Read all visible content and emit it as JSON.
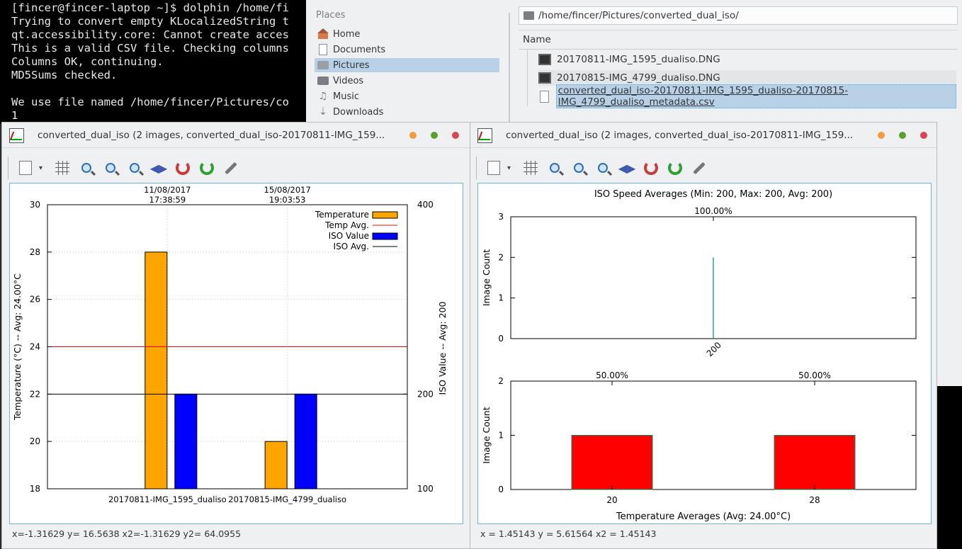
{
  "terminal": {
    "lines": [
      "[fincer@fincer-laptop ~]$ dolphin /home/fi",
      "Trying to convert empty KLocalizedString t",
      "qt.accessibility.core: Cannot create acces",
      "This is a valid CSV file. Checking columns",
      "Columns OK, continuing.",
      "MD5Sums checked.",
      "",
      "We use file named /home/fincer/Pictures/co",
      "1"
    ]
  },
  "dolphin": {
    "places_title": "Places",
    "places": [
      {
        "label": "Home",
        "icon": "home-icon"
      },
      {
        "label": "Documents",
        "icon": "document-icon"
      },
      {
        "label": "Pictures",
        "icon": "pictures-icon"
      },
      {
        "label": "Videos",
        "icon": "videos-icon"
      },
      {
        "label": "Music",
        "icon": "music-icon"
      },
      {
        "label": "Downloads",
        "icon": "downloads-icon"
      }
    ],
    "path": "/home/fincer/Pictures/converted_dual_iso/",
    "column_name": "Name",
    "files": [
      "20170811-IMG_1595_dualiso.DNG",
      "20170815-IMG_4799_dualiso.DNG",
      "converted_dual_iso-20170811-IMG_1595_dualiso-20170815-IMG_4799_dualiso_metadata.csv"
    ]
  },
  "left_window": {
    "title": "converted_dual_iso (2 images, converted_dual_iso-20170811-IMG_159...",
    "status": "x=-1.31629 y= 16.5638 x2=-1.31629 y2= 64.0955"
  },
  "right_window": {
    "title": "converted_dual_iso (2 images, converted_dual_iso-20170811-IMG_159...",
    "status": "x = 1.45143 y = 5.61564 x2 = 1.45143"
  },
  "chart_data": [
    {
      "type": "bar",
      "categories": [
        "20170811-IMG_1595_dualiso",
        "20170815-IMG_4799_dualiso"
      ],
      "top_labels": [
        [
          "11/08/2017",
          "17:38:59"
        ],
        [
          "15/08/2017",
          "19:03:53"
        ]
      ],
      "series": [
        {
          "name": "Temperature",
          "axis": "left",
          "values": [
            28,
            20
          ],
          "color": "#ffa500"
        },
        {
          "name": "ISO Value",
          "axis": "right",
          "values": [
            200,
            200
          ],
          "color": "#0000ff"
        }
      ],
      "lines": [
        {
          "name": "Temp Avg.",
          "axis": "left",
          "value": 24,
          "color": "#ff0000"
        },
        {
          "name": "ISO Avg.",
          "axis": "right",
          "value": 200,
          "color": "#000000"
        }
      ],
      "ylabel": "Temperature (°C) -- Avg: 24.00°C",
      "y2label": "ISO Value -- Avg: 200",
      "ylim": [
        18,
        30
      ],
      "yticks": [
        18,
        20,
        22,
        24,
        26,
        28,
        30
      ],
      "y2lim": [
        100,
        400
      ],
      "y2ticks": [
        100,
        200,
        400
      ],
      "legend": "top-right",
      "grid": true
    },
    {
      "type": "bar",
      "title": "ISO Speed Averages (Min: 200, Max: 200, Avg: 200)",
      "categories": [
        "200"
      ],
      "values": [
        2
      ],
      "percent_labels": [
        "100.00%"
      ],
      "ylabel": "Image Count",
      "ylim": [
        0,
        3
      ],
      "yticks": [
        0,
        1,
        2,
        3
      ],
      "color": "#008b6b"
    },
    {
      "type": "bar",
      "categories": [
        "20",
        "28"
      ],
      "values": [
        1,
        1
      ],
      "percent_labels": [
        "50.00%",
        "50.00%"
      ],
      "xlabel": "Temperature Averages (Avg: 24.00°C)",
      "ylabel": "Image Count",
      "ylim": [
        0,
        2
      ],
      "yticks": [
        0,
        1,
        2
      ],
      "color": "#ff0000"
    }
  ]
}
